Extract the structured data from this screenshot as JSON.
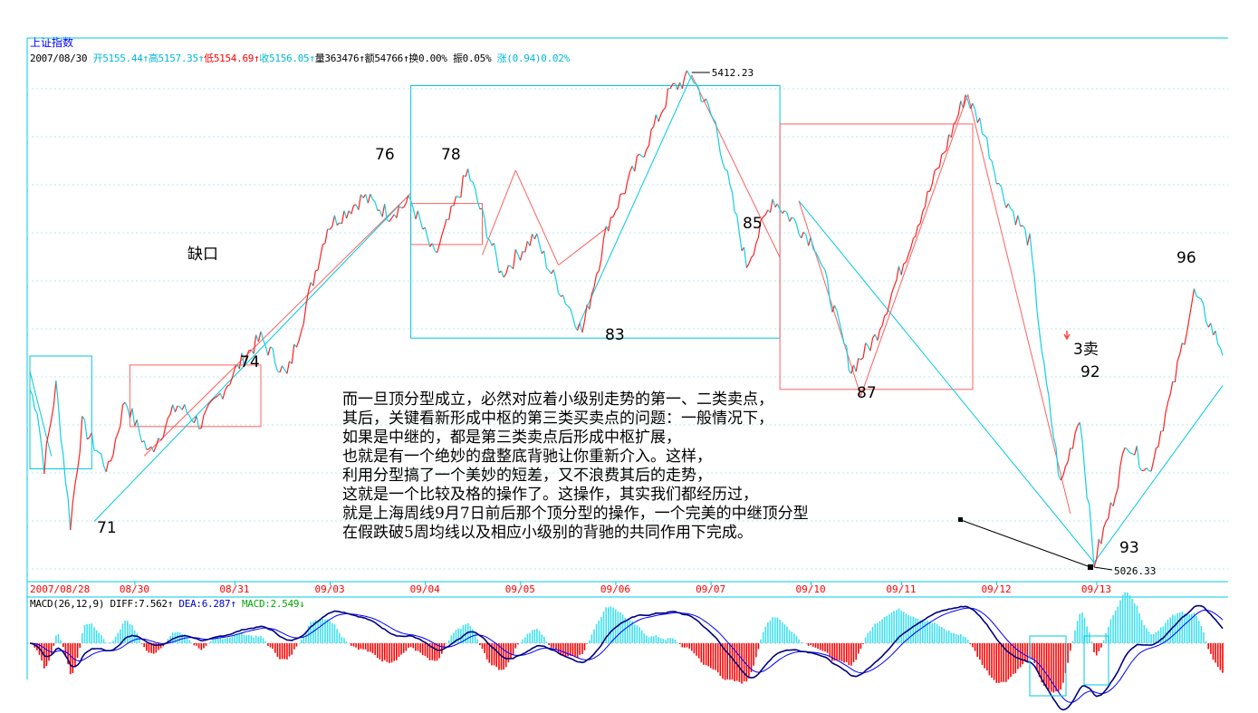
{
  "header": {
    "title": "上证指数",
    "date": "2007/08/30",
    "open": "开5155.44↑",
    "high": "高5157.35↑",
    "low": "低5154.69↑",
    "close": "收5156.05↑",
    "volume": "量363476↑",
    "amount": "额54766↑",
    "turnover": "换0.00%",
    "amplitude": "振0.05%",
    "change": "涨(0.94)0.02%"
  },
  "macd_header": {
    "params": "MACD(26,12,9)",
    "diff": "DIFF:7.562↑",
    "dea": "DEA:6.287↑",
    "macd": "MACD:2.549↓"
  },
  "comment_lines": [
    "而一旦顶分型成立，必然对应着小级别走势的第一、二类卖点，",
    "其后，关键看新形成中枢的第三类买卖点的问题：一般情况下，",
    "如果是中继的，都是第三类卖点后形成中枢扩展，",
    "也就是有一个绝妙的盘整底背驰让你重新介入。这样，",
    "利用分型搞了一个美妙的短差，又不浪费其后的走势，",
    "这就是一个比较及格的操作了。这操作，其实我们都经历过，",
    "就是上海周线9月7日前后那个顶分型的操作，一个完美的中继顶分型",
    "在假跌破5周均线以及相应小级别的背驰的共同作用下完成。"
  ],
  "chart_data": {
    "type": "line",
    "title": "上证指数",
    "x_tick_labels": [
      "2007/08/28",
      "08/30",
      "08/31",
      "09/03",
      "09/04",
      "09/05",
      "09/06",
      "09/07",
      "09/10",
      "09/11",
      "09/12",
      "09/13"
    ],
    "price_range": [
      5026.33,
      5412.23
    ],
    "max_label": "5412.23",
    "min_label": "5026.33",
    "series": [
      {
        "points": [
          {
            "i": 0,
            "y": 5165
          },
          {
            "i": 3,
            "y": 5150
          },
          {
            "i": 6,
            "y": 5105
          },
          {
            "i": 11,
            "y": 5168
          },
          {
            "i": 17,
            "y": 5060
          },
          {
            "i": 22,
            "y": 5138
          },
          {
            "i": 33,
            "y": 5102
          },
          {
            "i": 40,
            "y": 5157
          },
          {
            "i": 50,
            "y": 5115
          },
          {
            "i": 62,
            "y": 5153
          },
          {
            "i": 72,
            "y": 5138
          },
          {
            "i": 90,
            "y": 5190
          },
          {
            "i": 97,
            "y": 5205
          },
          {
            "i": 108,
            "y": 5175
          },
          {
            "i": 125,
            "y": 5292
          },
          {
            "i": 140,
            "y": 5315
          },
          {
            "i": 151,
            "y": 5302
          },
          {
            "i": 160,
            "y": 5312
          },
          {
            "i": 170,
            "y": 5268
          },
          {
            "i": 184,
            "y": 5335
          },
          {
            "i": 198,
            "y": 5255
          },
          {
            "i": 212,
            "y": 5285
          },
          {
            "i": 218,
            "y": 5260
          },
          {
            "i": 232,
            "y": 5210
          },
          {
            "i": 243,
            "y": 5295
          },
          {
            "i": 258,
            "y": 5352
          },
          {
            "i": 269,
            "y": 5398
          },
          {
            "i": 278,
            "y": 5410
          },
          {
            "i": 288,
            "y": 5372
          },
          {
            "i": 301,
            "y": 5262
          },
          {
            "i": 312,
            "y": 5314
          },
          {
            "i": 330,
            "y": 5278
          },
          {
            "i": 345,
            "y": 5180
          },
          {
            "i": 355,
            "y": 5205
          },
          {
            "i": 373,
            "y": 5295
          },
          {
            "i": 386,
            "y": 5360
          },
          {
            "i": 393,
            "y": 5395
          },
          {
            "i": 400,
            "y": 5370
          },
          {
            "i": 408,
            "y": 5320
          },
          {
            "i": 420,
            "y": 5280
          },
          {
            "i": 426,
            "y": 5180
          },
          {
            "i": 433,
            "y": 5090
          },
          {
            "i": 441,
            "y": 5145
          },
          {
            "i": 447,
            "y": 5030
          },
          {
            "i": 454,
            "y": 5072
          },
          {
            "i": 461,
            "y": 5125
          },
          {
            "i": 470,
            "y": 5100
          },
          {
            "i": 480,
            "y": 5165
          },
          {
            "i": 489,
            "y": 5240
          },
          {
            "i": 495,
            "y": 5218
          },
          {
            "i": 501,
            "y": 5195
          }
        ]
      }
    ],
    "macd_series": [
      {
        "name": "DIFF",
        "color": "#000080"
      },
      {
        "name": "DEA",
        "color": "#0000ff"
      },
      {
        "name": "MACD",
        "color": "#ff0000"
      }
    ],
    "annotations": [
      "71",
      "74",
      "76",
      "78",
      "83",
      "85",
      "87",
      "3卖",
      "92",
      "93",
      "96",
      "缺口"
    ]
  }
}
